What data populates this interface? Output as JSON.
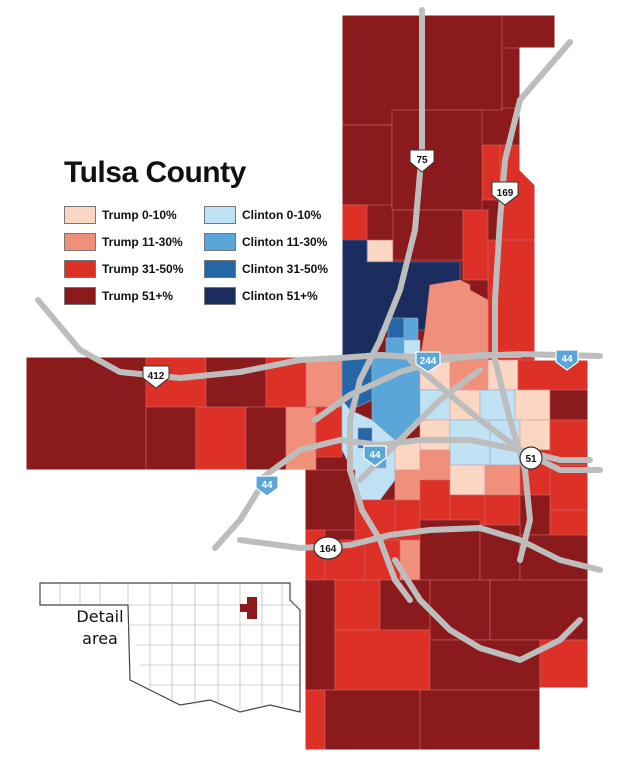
{
  "map": {
    "title": "Tulsa County",
    "legend": [
      {
        "label": "Trump 0-10%",
        "color": "#fbd6c2"
      },
      {
        "label": "Clinton 0-10%",
        "color": "#bfe2f5"
      },
      {
        "label": "Trump 11-30%",
        "color": "#f0907a"
      },
      {
        "label": "Clinton 11-30%",
        "color": "#5aa6d9"
      },
      {
        "label": "Trump 31-50%",
        "color": "#dd3127"
      },
      {
        "label": "Clinton 31-50%",
        "color": "#2566a9"
      },
      {
        "label": "Trump 51+%",
        "color": "#8b1a1d"
      },
      {
        "label": "Clinton 51+%",
        "color": "#1b2d5e"
      }
    ],
    "shields": [
      {
        "label": "75",
        "type": "us-highway"
      },
      {
        "label": "169",
        "type": "us-highway"
      },
      {
        "label": "412",
        "type": "us-highway"
      },
      {
        "label": "244",
        "type": "interstate"
      },
      {
        "label": "44",
        "type": "interstate"
      },
      {
        "label": "51",
        "type": "state-highway"
      },
      {
        "label": "164",
        "type": "state-highway"
      }
    ],
    "inset": {
      "label_line1": "Detail",
      "label_line2": "area"
    }
  }
}
